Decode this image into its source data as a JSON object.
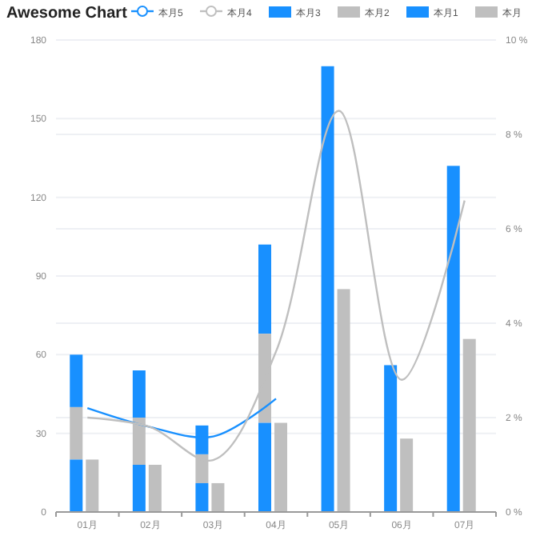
{
  "chart_data": {
    "type": "bar",
    "title": "Awesome Chart",
    "categories": [
      "01月",
      "02月",
      "03月",
      "04月",
      "05月",
      "06月",
      "07月"
    ],
    "series": [
      {
        "name": "本月5",
        "type": "line",
        "axis": "y2",
        "color": "#1890ff",
        "values": [
          2.2,
          1.8,
          1.6,
          2.4,
          null,
          null,
          null
        ]
      },
      {
        "name": "本月4",
        "type": "line",
        "axis": "y2",
        "color": "#bfbfbf",
        "values": [
          2.0,
          1.8,
          1.1,
          3.4,
          8.5,
          2.8,
          6.6
        ]
      },
      {
        "name": "本月3",
        "color": "#1890ff",
        "base": [
          40,
          36,
          22,
          68,
          null,
          null,
          null
        ],
        "values": [
          20,
          18,
          11,
          34,
          null,
          null,
          null
        ]
      },
      {
        "name": "本月2",
        "color": "#bfbfbf",
        "base": [
          20,
          18,
          11,
          34,
          null,
          null,
          null
        ],
        "values": [
          20,
          18,
          11,
          34,
          null,
          null,
          null
        ]
      },
      {
        "name": "本月1",
        "color": "#1890ff",
        "values": [
          20,
          18,
          11,
          34,
          170,
          56,
          132
        ]
      },
      {
        "name": "本月",
        "color": "#bfbfbf",
        "values": [
          20,
          18,
          11,
          34,
          85,
          28,
          66
        ]
      }
    ],
    "ylim": [
      0,
      180
    ],
    "yticks": [
      0,
      30,
      60,
      90,
      120,
      150,
      180
    ],
    "y2lim": [
      0,
      10
    ],
    "y2ticks": [
      {
        "value": 0,
        "label": "0 %"
      },
      {
        "value": 2,
        "label": "2 %"
      },
      {
        "value": 4,
        "label": "4 %"
      },
      {
        "value": 6,
        "label": "6 %"
      },
      {
        "value": 8,
        "label": "8 %"
      },
      {
        "value": 10,
        "label": "10 %"
      }
    ],
    "grid": true,
    "legend": "top"
  }
}
